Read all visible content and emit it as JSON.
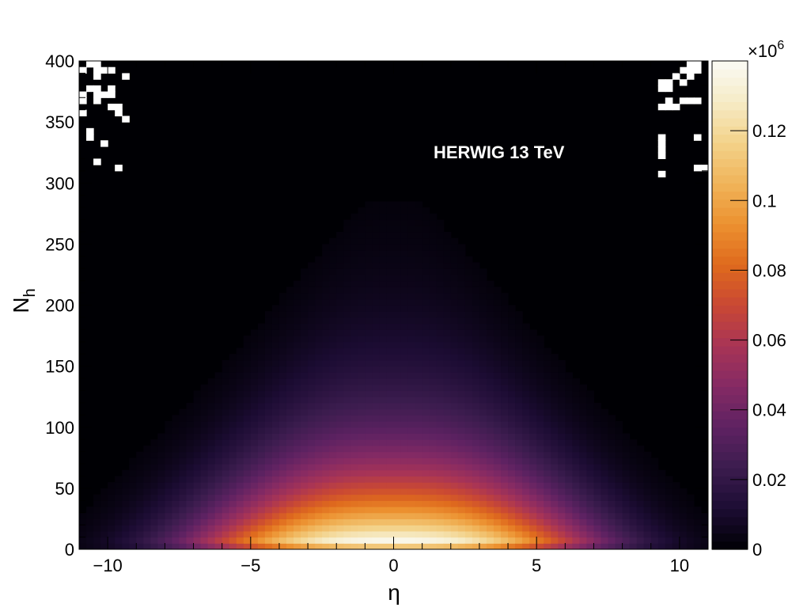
{
  "chart_data": {
    "type": "heatmap",
    "annotation": "HERWIG 13 TeV",
    "xlabel": "η",
    "ylabel_main": "N",
    "ylabel_sub": "h",
    "xlim": [
      -11,
      11
    ],
    "ylim": [
      0,
      400
    ],
    "x_ticks": [
      -10,
      -5,
      0,
      5,
      10
    ],
    "x_tick_labels": [
      "−10",
      "−5",
      "0",
      "5",
      "10"
    ],
    "y_ticks": [
      0,
      50,
      100,
      150,
      200,
      250,
      300,
      350,
      400
    ],
    "y_tick_labels": [
      "0",
      "50",
      "100",
      "150",
      "200",
      "250",
      "300",
      "350",
      "400"
    ],
    "x_bins": 88,
    "y_bins": 80,
    "distribution": {
      "description_values": "approx counts per (eta, N_h) bin; peak near eta=0, low N_h",
      "peak_value": 0.14,
      "peak_eta": 0,
      "peak_nh": 5,
      "eta_half_width_at_low_nh": 6.5,
      "nh_decay_scale": 55,
      "eta_range_of_coverage": [
        -11,
        11
      ]
    },
    "colorbar": {
      "multiplier_label": "×10",
      "multiplier_exponent": "6",
      "range": [
        0,
        0.14
      ],
      "ticks": [
        0,
        0.02,
        0.04,
        0.06,
        0.08,
        0.1,
        0.12
      ],
      "tick_labels": [
        "0",
        "0.02",
        "0.04",
        "0.06",
        "0.08",
        "0.1",
        "0.12"
      ]
    },
    "colors": {
      "palette": [
        "#000004",
        "#1c0c33",
        "#3b1c4e",
        "#5e2262",
        "#842a64",
        "#a83456",
        "#c94834",
        "#df6a1d",
        "#ec9130",
        "#f0b45a",
        "#f3d28a",
        "#f6ebc6",
        "#fafaf5"
      ],
      "empty_bin": "#ffffff",
      "axis": "#000000"
    }
  }
}
